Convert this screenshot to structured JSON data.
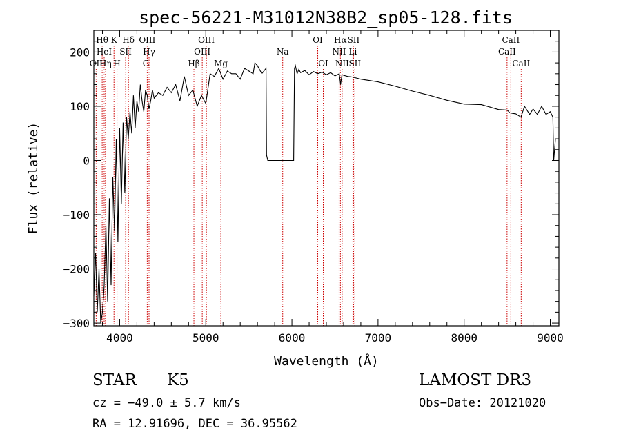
{
  "chart_data": {
    "type": "line",
    "title": "spec-56221-M31012N38B2_sp05-128.fits",
    "xlabel": "Wavelength (Å)",
    "ylabel": "Flux (relative)",
    "xlim": [
      3700,
      9100
    ],
    "ylim": [
      -305,
      240
    ],
    "xticks": [
      4000,
      5000,
      6000,
      7000,
      8000,
      9000
    ],
    "yticks": [
      -300,
      -200,
      -100,
      0,
      100,
      200
    ],
    "xtick_labels": [
      "4000",
      "5000",
      "6000",
      "7000",
      "8000",
      "9000"
    ],
    "ytick_labels": [
      "−300",
      "−200",
      "−100",
      "0",
      "100",
      "200"
    ],
    "spectrum": {
      "wavelength": [
        3700,
        3720,
        3740,
        3760,
        3780,
        3800,
        3820,
        3840,
        3860,
        3880,
        3900,
        3920,
        3940,
        3960,
        3980,
        4000,
        4020,
        4040,
        4060,
        4080,
        4100,
        4120,
        4140,
        4160,
        4180,
        4200,
        4220,
        4240,
        4260,
        4280,
        4300,
        4320,
        4340,
        4360,
        4380,
        4400,
        4450,
        4500,
        4550,
        4600,
        4650,
        4700,
        4750,
        4800,
        4850,
        4900,
        4950,
        5000,
        5050,
        5100,
        5150,
        5200,
        5250,
        5300,
        5350,
        5400,
        5450,
        5500,
        5550,
        5570,
        5600,
        5650,
        5700,
        5705,
        5720,
        6020,
        6030,
        6040,
        6060,
        6080,
        6100,
        6150,
        6200,
        6250,
        6300,
        6350,
        6400,
        6450,
        6500,
        6550,
        6565,
        6580,
        6650,
        6700,
        6800,
        7000,
        7200,
        7400,
        7600,
        7800,
        8000,
        8200,
        8400,
        8500,
        8530,
        8560,
        8600,
        8660,
        8700,
        8760,
        8800,
        8850,
        8900,
        8950,
        9000,
        9030,
        9040,
        9060
      ],
      "flux": [
        -250,
        -170,
        -280,
        -200,
        -300,
        -280,
        -230,
        -120,
        -260,
        -70,
        -230,
        -30,
        -130,
        40,
        -150,
        60,
        -80,
        70,
        -60,
        80,
        40,
        90,
        50,
        120,
        60,
        110,
        90,
        140,
        110,
        90,
        130,
        120,
        95,
        110,
        130,
        115,
        125,
        120,
        135,
        125,
        140,
        110,
        155,
        120,
        130,
        100,
        120,
        105,
        160,
        155,
        170,
        150,
        165,
        160,
        160,
        150,
        170,
        165,
        160,
        180,
        175,
        160,
        170,
        10,
        0,
        0,
        170,
        175,
        160,
        168,
        162,
        166,
        158,
        164,
        160,
        163,
        158,
        162,
        156,
        160,
        140,
        158,
        155,
        154,
        150,
        145,
        137,
        128,
        120,
        111,
        104,
        103,
        94,
        93,
        88,
        87,
        86,
        80,
        100,
        85,
        95,
        85,
        100,
        85,
        90,
        80,
        0,
        40
      ]
    },
    "line_markers": [
      {
        "label": "Hθ",
        "wavelength": 3797,
        "row": 1
      },
      {
        "label": "OII",
        "wavelength": 3727,
        "row": 3
      },
      {
        "label": "HeI",
        "wavelength": 3820,
        "row": 2
      },
      {
        "label": "Hη",
        "wavelength": 3835,
        "row": 3
      },
      {
        "label": "K",
        "wavelength": 3934,
        "row": 1
      },
      {
        "label": "H",
        "wavelength": 3969,
        "row": 3
      },
      {
        "label": "SII",
        "wavelength": 4069,
        "row": 2
      },
      {
        "label": "Hδ",
        "wavelength": 4102,
        "row": 1
      },
      {
        "label": "OIII",
        "wavelength": 4320,
        "row": 1
      },
      {
        "label": "Hγ",
        "wavelength": 4341,
        "row": 2
      },
      {
        "label": "G",
        "wavelength": 4305,
        "row": 3
      },
      {
        "label": "Hβ",
        "wavelength": 4862,
        "row": 3
      },
      {
        "label": "OIII",
        "wavelength": 4959,
        "row": 2
      },
      {
        "label": "OIII",
        "wavelength": 5007,
        "row": 1
      },
      {
        "label": "Mg",
        "wavelength": 5175,
        "row": 3
      },
      {
        "label": "Na",
        "wavelength": 5893,
        "row": 2
      },
      {
        "label": "OI",
        "wavelength": 6300,
        "row": 1
      },
      {
        "label": "OI",
        "wavelength": 6364,
        "row": 3
      },
      {
        "label": "Hα",
        "wavelength": 6563,
        "row": 1
      },
      {
        "label": "NII",
        "wavelength": 6548,
        "row": 2
      },
      {
        "label": "NII",
        "wavelength": 6583,
        "row": 3
      },
      {
        "label": "SII",
        "wavelength": 6716,
        "row": 1
      },
      {
        "label": "Li",
        "wavelength": 6708,
        "row": 2
      },
      {
        "label": "SII",
        "wavelength": 6731,
        "row": 3
      },
      {
        "label": "CaII",
        "wavelength": 8542,
        "row": 1
      },
      {
        "label": "CaII",
        "wavelength": 8498,
        "row": 2
      },
      {
        "label": "CaII",
        "wavelength": 8662,
        "row": 3
      }
    ],
    "annotation_color": "#cc0000"
  },
  "info": {
    "object_class": "STAR",
    "subclass": "K5",
    "survey": "LAMOST DR3",
    "cz": "cz = −49.0 ± 5.7 km/s",
    "obs_date": "Obs−Date: 20121020",
    "coords": "RA =  12.91696, DEC =  36.95562"
  }
}
